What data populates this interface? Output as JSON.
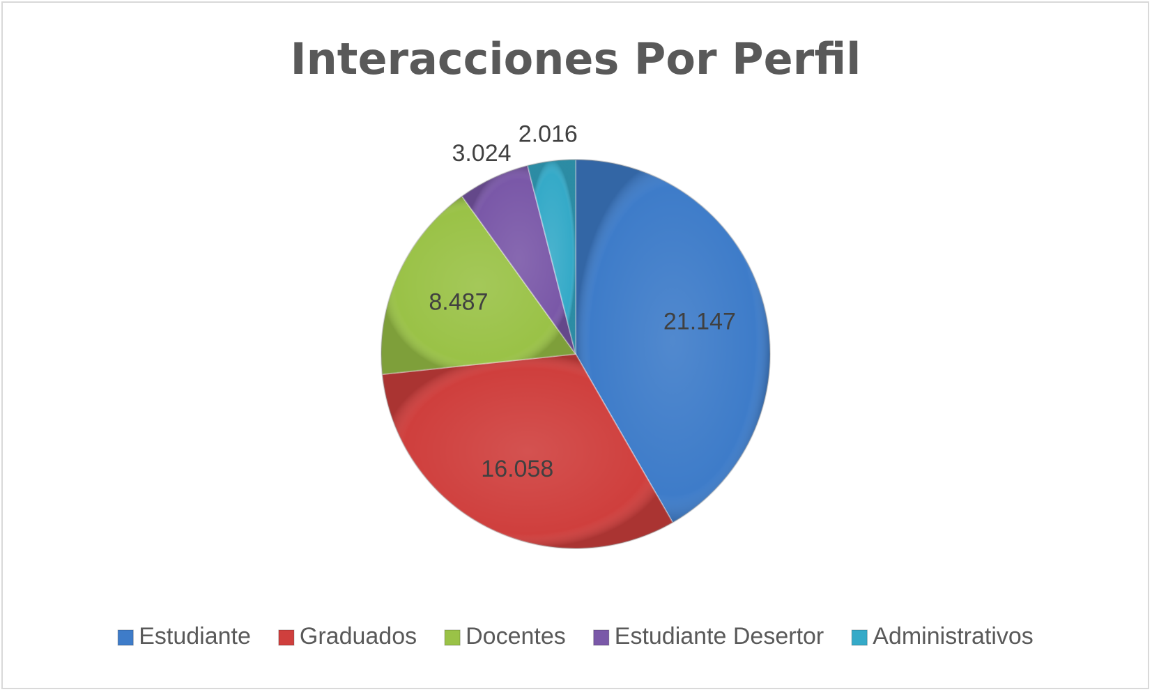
{
  "chart_data": {
    "type": "pie",
    "title": "Interacciones Por Perfil",
    "legend_position": "bottom",
    "categories": [
      "Estudiante",
      "Graduados",
      "Docentes",
      "Estudiante Desertor",
      "Administrativos"
    ],
    "values": [
      21147,
      16058,
      8487,
      3024,
      2016
    ],
    "labels": [
      "21.147",
      "16.058",
      "8.487",
      "3.024",
      "2.016"
    ],
    "colors": [
      "#3e7cc9",
      "#cf3f3d",
      "#9ac247",
      "#7a58a8",
      "#35aac8"
    ]
  }
}
